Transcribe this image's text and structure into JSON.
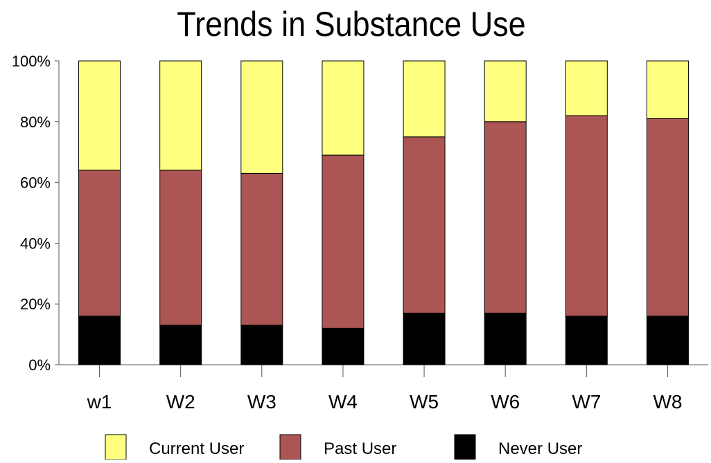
{
  "chart_data": {
    "type": "bar",
    "stacked": true,
    "percent": true,
    "title": "Trends in Substance Use",
    "xlabel": "",
    "ylabel": "",
    "categories": [
      "w1",
      "W2",
      "W3",
      "W4",
      "W5",
      "W6",
      "W7",
      "W8"
    ],
    "ylim": [
      0,
      100
    ],
    "yticks": [
      "0%",
      "20%",
      "40%",
      "60%",
      "80%",
      "100%"
    ],
    "grid": false,
    "legend_position": "bottom",
    "series": [
      {
        "name": "Never User",
        "color": "#000000",
        "values": [
          16,
          13,
          13,
          12,
          17,
          17,
          16,
          16
        ]
      },
      {
        "name": "Past User",
        "color": "#ab5555",
        "values": [
          48,
          51,
          50,
          57,
          58,
          63,
          66,
          65
        ]
      },
      {
        "name": "Current User",
        "color": "#ffff80",
        "values": [
          36,
          36,
          37,
          31,
          25,
          20,
          18,
          19
        ]
      }
    ],
    "legend_order": [
      "Current User",
      "Past User",
      "Never User"
    ]
  }
}
